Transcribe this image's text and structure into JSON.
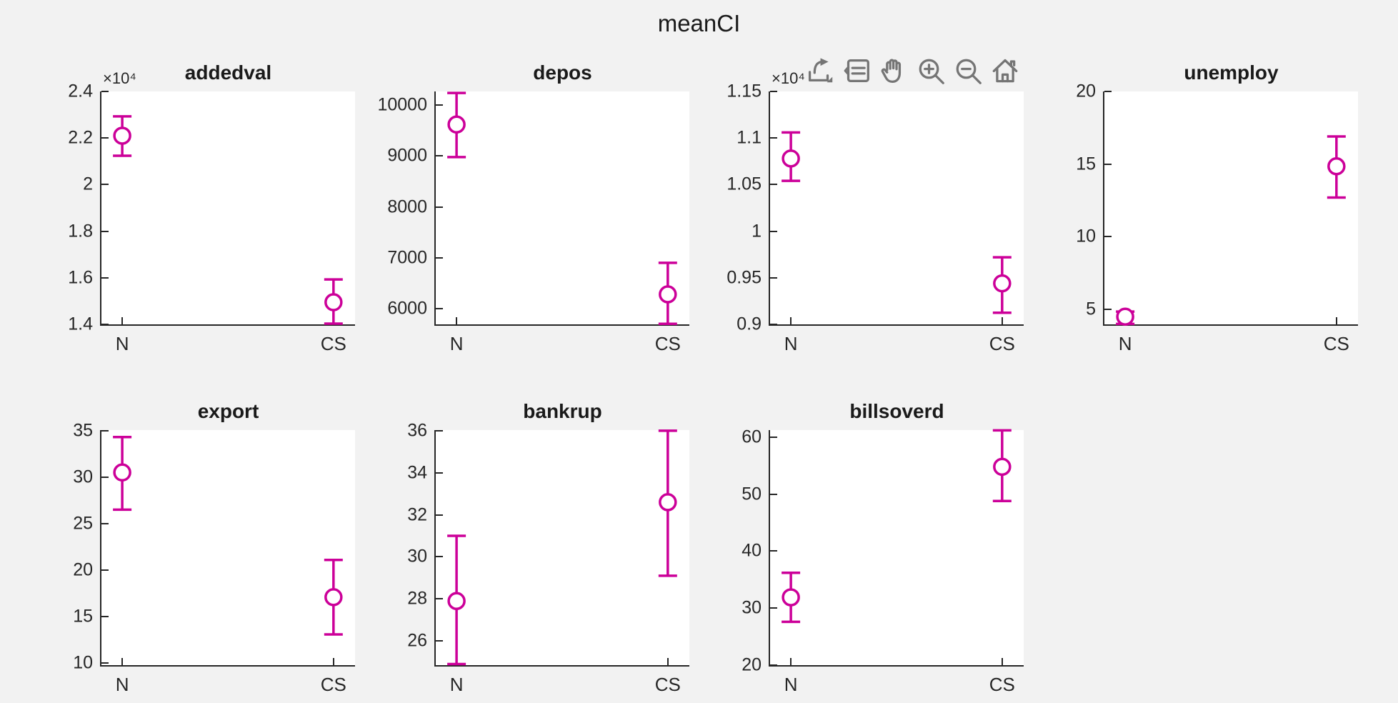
{
  "figure": {
    "title": "meanCI",
    "background_color": "#F2F2F2",
    "plot_background_color": "#FFFFFF",
    "axis_color": "#262626",
    "text_color": "#1A1A1A",
    "errorbar_color": "#CC0099",
    "toolbar_icon_color": "#757575"
  },
  "toolbar": {
    "icons": [
      {
        "name": "export-icon",
        "label": "Export"
      },
      {
        "name": "data-tips-icon",
        "label": "Data Tips"
      },
      {
        "name": "pan-icon",
        "label": "Pan"
      },
      {
        "name": "zoom-in-icon",
        "label": "Zoom In"
      },
      {
        "name": "zoom-out-icon",
        "label": "Zoom Out"
      },
      {
        "name": "restore-view-icon",
        "label": "Restore View"
      }
    ]
  },
  "chart_data": [
    {
      "type": "scatter",
      "subtype": "errorbar",
      "title": "addedval",
      "exponent": "×10⁴",
      "row": 0,
      "col": 0,
      "categories": [
        "N",
        "CS"
      ],
      "ylim": [
        14000,
        24000
      ],
      "ytick_values": [
        14000,
        16000,
        18000,
        20000,
        22000,
        24000
      ],
      "ytick_labels": [
        "1.4",
        "1.6",
        "1.8",
        "2",
        "2.2",
        "2.4"
      ],
      "points": [
        {
          "category": "N",
          "mean": 22100,
          "ci_low": 21240,
          "ci_high": 22930
        },
        {
          "category": "CS",
          "mean": 14950,
          "ci_low": 14030,
          "ci_high": 15930
        }
      ]
    },
    {
      "type": "scatter",
      "subtype": "errorbar",
      "title": "depos",
      "exponent": null,
      "row": 0,
      "col": 1,
      "categories": [
        "N",
        "CS"
      ],
      "ylim": [
        5690,
        10270
      ],
      "ytick_values": [
        6000,
        7000,
        8000,
        9000,
        10000
      ],
      "ytick_labels": [
        "6000",
        "7000",
        "8000",
        "9000",
        "10000"
      ],
      "points": [
        {
          "category": "N",
          "mean": 9620,
          "ci_low": 8980,
          "ci_high": 10240
        },
        {
          "category": "CS",
          "mean": 6280,
          "ci_low": 5700,
          "ci_high": 6900
        }
      ]
    },
    {
      "type": "scatter",
      "subtype": "errorbar",
      "title": null,
      "exponent": "×10⁴",
      "row": 0,
      "col": 2,
      "categories": [
        "N",
        "CS"
      ],
      "ylim": [
        9000,
        11500
      ],
      "ytick_values": [
        9000,
        9500,
        10000,
        10500,
        11000,
        11500
      ],
      "ytick_labels": [
        "0.9",
        "0.95",
        "1",
        "1.05",
        "1.1",
        "1.15"
      ],
      "points": [
        {
          "category": "N",
          "mean": 10780,
          "ci_low": 10540,
          "ci_high": 11060
        },
        {
          "category": "CS",
          "mean": 9440,
          "ci_low": 9125,
          "ci_high": 9720
        }
      ]
    },
    {
      "type": "scatter",
      "subtype": "errorbar",
      "title": "unemploy",
      "exponent": null,
      "row": 0,
      "col": 3,
      "categories": [
        "N",
        "CS"
      ],
      "ylim": [
        3.97,
        20
      ],
      "ytick_values": [
        5,
        10,
        15,
        20
      ],
      "ytick_labels": [
        "5",
        "10",
        "15",
        "20"
      ],
      "points": [
        {
          "category": "N",
          "mean": 4.5,
          "ci_low": 4.0,
          "ci_high": 4.85
        },
        {
          "category": "CS",
          "mean": 14.85,
          "ci_low": 12.7,
          "ci_high": 16.9
        }
      ]
    },
    {
      "type": "scatter",
      "subtype": "errorbar",
      "title": "export",
      "exponent": null,
      "row": 1,
      "col": 0,
      "categories": [
        "N",
        "CS"
      ],
      "ylim": [
        9.8,
        35.05
      ],
      "ytick_values": [
        10,
        15,
        20,
        25,
        30,
        35
      ],
      "ytick_labels": [
        "10",
        "15",
        "20",
        "25",
        "30",
        "35"
      ],
      "points": [
        {
          "category": "N",
          "mean": 30.5,
          "ci_low": 26.5,
          "ci_high": 34.3
        },
        {
          "category": "CS",
          "mean": 17.1,
          "ci_low": 13.1,
          "ci_high": 21.1
        }
      ]
    },
    {
      "type": "scatter",
      "subtype": "errorbar",
      "title": "bankrup",
      "exponent": null,
      "row": 1,
      "col": 1,
      "categories": [
        "N",
        "CS"
      ],
      "ylim": [
        24.85,
        36.03
      ],
      "ytick_values": [
        26,
        28,
        30,
        32,
        34,
        36
      ],
      "ytick_labels": [
        "26",
        "28",
        "30",
        "32",
        "34",
        "36"
      ],
      "points": [
        {
          "category": "N",
          "mean": 27.9,
          "ci_low": 24.9,
          "ci_high": 31.0
        },
        {
          "category": "CS",
          "mean": 32.6,
          "ci_low": 29.1,
          "ci_high": 36.0
        }
      ]
    },
    {
      "type": "scatter",
      "subtype": "errorbar",
      "title": "billsoverd",
      "exponent": null,
      "row": 1,
      "col": 2,
      "categories": [
        "N",
        "CS"
      ],
      "ylim": [
        20,
        61.24
      ],
      "ytick_values": [
        20,
        30,
        40,
        50,
        60
      ],
      "ytick_labels": [
        "20",
        "30",
        "40",
        "50",
        "60"
      ],
      "points": [
        {
          "category": "N",
          "mean": 31.9,
          "ci_low": 27.6,
          "ci_high": 36.2
        },
        {
          "category": "CS",
          "mean": 54.8,
          "ci_low": 48.8,
          "ci_high": 61.2
        }
      ]
    }
  ]
}
